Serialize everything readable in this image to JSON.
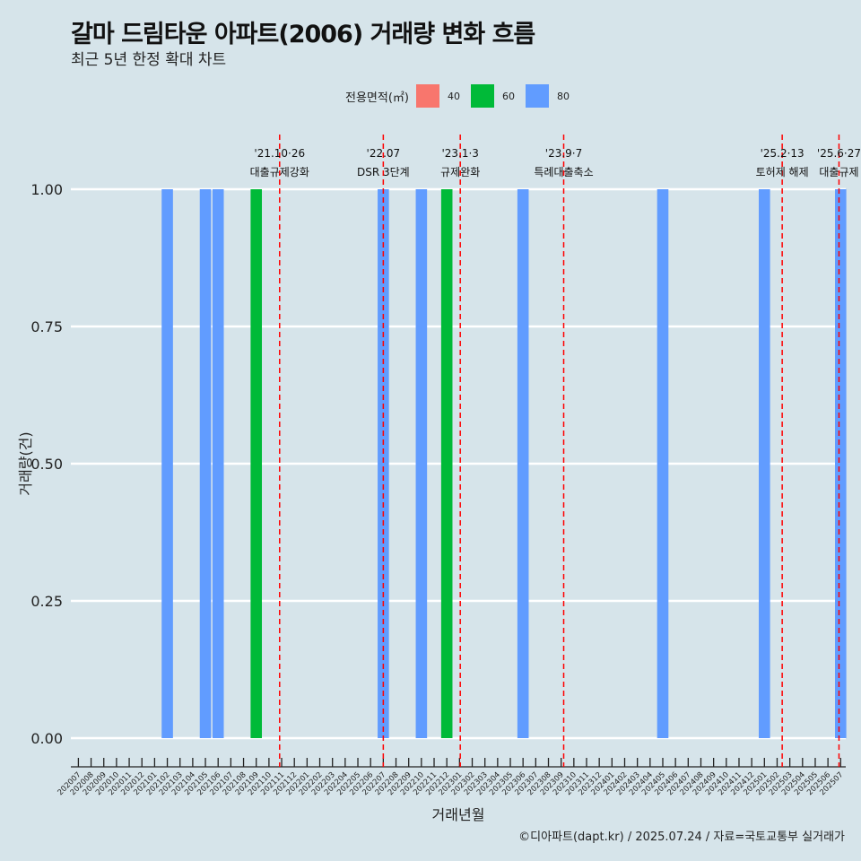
{
  "title": "갈마 드림타운 아파트(2006) 거래량 변화 흐름",
  "subtitle": "최근 5년 한정 확대 차트",
  "caption": "©디아파트(dapt.kr) / 2025.07.24 / 자료=국토교통부 실거래가",
  "legend": {
    "title": "전용면적(㎡)",
    "items": [
      {
        "label": "40",
        "color": "#f8766d"
      },
      {
        "label": "60",
        "color": "#00ba38"
      },
      {
        "label": "80",
        "color": "#619cff"
      }
    ]
  },
  "chart_data": {
    "type": "bar",
    "xlabel": "거래년월",
    "ylabel": "거래량(건)",
    "ylim": [
      0,
      1
    ],
    "yticks": [
      "0.00",
      "0.25",
      "0.50",
      "0.75",
      "1.00"
    ],
    "grid": true,
    "legend_position": "top",
    "categories": [
      "202007",
      "202008",
      "202009",
      "202010",
      "202011",
      "202012",
      "202101",
      "202102",
      "202103",
      "202104",
      "202105",
      "202106",
      "202107",
      "202108",
      "202109",
      "202110",
      "202111",
      "202112",
      "202201",
      "202202",
      "202203",
      "202204",
      "202205",
      "202206",
      "202207",
      "202208",
      "202209",
      "202210",
      "202211",
      "202212",
      "202301",
      "202302",
      "202303",
      "202304",
      "202305",
      "202306",
      "202307",
      "202308",
      "202309",
      "202310",
      "202311",
      "202312",
      "202401",
      "202402",
      "202403",
      "202404",
      "202405",
      "202406",
      "202407",
      "202408",
      "202409",
      "202410",
      "202411",
      "202412",
      "202501",
      "202502",
      "202503",
      "202504",
      "202505",
      "202506",
      "202507"
    ],
    "bars": [
      {
        "month": "202102",
        "series": "80",
        "value": 1
      },
      {
        "month": "202105",
        "series": "80",
        "value": 1
      },
      {
        "month": "202106",
        "series": "80",
        "value": 1
      },
      {
        "month": "202109",
        "series": "60",
        "value": 1
      },
      {
        "month": "202207",
        "series": "80",
        "value": 1
      },
      {
        "month": "202210",
        "series": "80",
        "value": 1
      },
      {
        "month": "202212",
        "series": "60",
        "value": 1
      },
      {
        "month": "202306",
        "series": "80",
        "value": 1
      },
      {
        "month": "202405",
        "series": "80",
        "value": 1
      },
      {
        "month": "202501",
        "series": "80",
        "value": 1
      },
      {
        "month": "202507",
        "series": "80",
        "value": 1
      }
    ],
    "events": [
      {
        "month": "202110",
        "offset": 0.84,
        "date": "'21.10·26",
        "label": "대출규제강화"
      },
      {
        "month": "202207",
        "offset": 0,
        "date": "'22.07",
        "label": "DSR 3단계"
      },
      {
        "month": "202301",
        "offset": 0.06,
        "date": "'23.1·3",
        "label": "규제완화"
      },
      {
        "month": "202309",
        "offset": 0.2,
        "date": "'23.9·7",
        "label": "특례대출축소"
      },
      {
        "month": "202502",
        "offset": 0.4,
        "date": "'25.2·13",
        "label": "토허제 해제"
      },
      {
        "month": "202506",
        "offset": 0.87,
        "date": "'25.6·27",
        "label": "대출규제"
      }
    ]
  }
}
